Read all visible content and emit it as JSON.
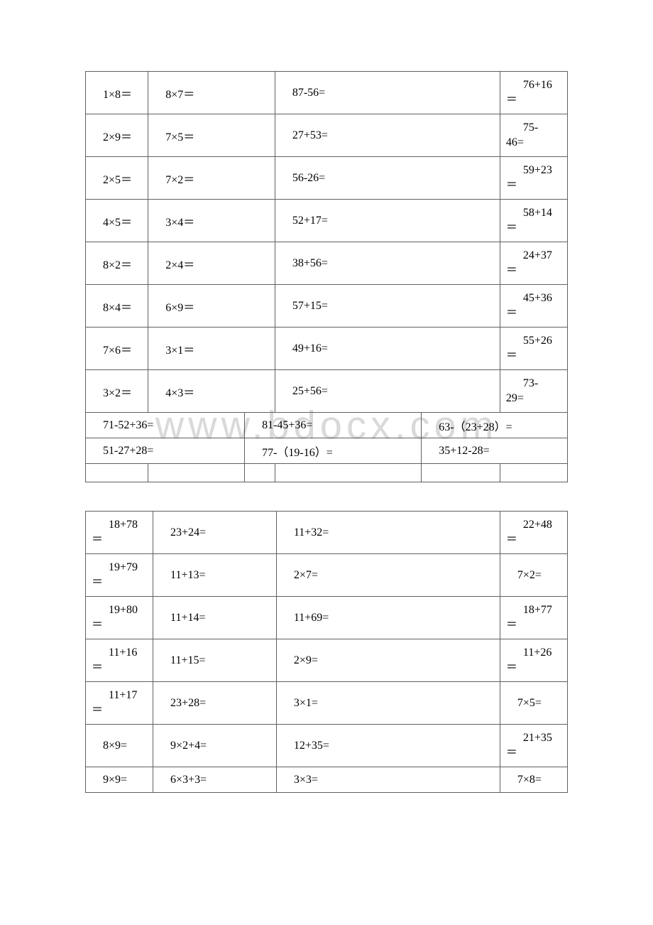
{
  "watermark": "www.bdocx.com",
  "table1": {
    "rows": [
      [
        {
          "text": "1×8＝",
          "wrap": false
        },
        {
          "text": "8×7＝",
          "wrap": false
        },
        {
          "text": "87-56=",
          "wrap": false
        },
        {
          "top": "76+16",
          "eq": "＝",
          "wrap": true
        }
      ],
      [
        {
          "text": "2×9＝",
          "wrap": false
        },
        {
          "text": "7×5＝",
          "wrap": false
        },
        {
          "text": "27+53=",
          "wrap": false
        },
        {
          "top": "75-",
          "eq": "46=",
          "wrap": true
        }
      ],
      [
        {
          "text": "2×5＝",
          "wrap": false
        },
        {
          "text": "7×2＝",
          "wrap": false
        },
        {
          "text": "56-26=",
          "wrap": false
        },
        {
          "top": "59+23",
          "eq": "＝",
          "wrap": true
        }
      ],
      [
        {
          "text": "4×5＝",
          "wrap": false
        },
        {
          "text": "3×4＝",
          "wrap": false
        },
        {
          "text": "52+17=",
          "wrap": false
        },
        {
          "top": "58+14",
          "eq": "＝",
          "wrap": true
        }
      ],
      [
        {
          "text": "8×2＝",
          "wrap": false
        },
        {
          "text": "2×4＝",
          "wrap": false
        },
        {
          "text": "38+56=",
          "wrap": false
        },
        {
          "top": "24+37",
          "eq": "＝",
          "wrap": true
        }
      ],
      [
        {
          "text": "8×4＝",
          "wrap": false
        },
        {
          "text": "6×9＝",
          "wrap": false
        },
        {
          "text": "57+15=",
          "wrap": false
        },
        {
          "top": "45+36",
          "eq": "＝",
          "wrap": true
        }
      ],
      [
        {
          "text": "7×6＝",
          "wrap": false
        },
        {
          "text": "3×1＝",
          "wrap": false
        },
        {
          "text": "49+16=",
          "wrap": false
        },
        {
          "top": "55+26",
          "eq": "＝",
          "wrap": true
        }
      ],
      [
        {
          "text": "3×2＝",
          "wrap": false
        },
        {
          "text": "4×3＝",
          "wrap": false
        },
        {
          "text": "25+56=",
          "wrap": false
        },
        {
          "top": "73-",
          "eq": "29=",
          "wrap": true
        }
      ]
    ],
    "wide": [
      [
        "71-52+36=",
        "81-45+36=",
        "63-（23+28）="
      ],
      [
        "51-27+28=",
        "77-（19-16）=",
        "35+12-28="
      ]
    ],
    "emptyCols": 6
  },
  "table2": {
    "rows": [
      [
        {
          "top": "18+78",
          "eq": "＝",
          "wrap": true
        },
        {
          "text": "23+24=",
          "wrap": false
        },
        {
          "text": "11+32=",
          "wrap": false
        },
        {
          "top": "22+48",
          "eq": "＝",
          "wrap": true
        }
      ],
      [
        {
          "top": "19+79",
          "eq": "＝",
          "wrap": true
        },
        {
          "text": "11+13=",
          "wrap": false
        },
        {
          "text": "2×7=",
          "wrap": false
        },
        {
          "text": "7×2=",
          "wrap": false
        }
      ],
      [
        {
          "top": "19+80",
          "eq": "＝",
          "wrap": true
        },
        {
          "text": "11+14=",
          "wrap": false
        },
        {
          "text": "11+69=",
          "wrap": false
        },
        {
          "top": "18+77",
          "eq": "＝",
          "wrap": true
        }
      ],
      [
        {
          "top": "11+16",
          "eq": "＝",
          "wrap": true
        },
        {
          "text": "11+15=",
          "wrap": false
        },
        {
          "text": "2×9=",
          "wrap": false
        },
        {
          "top": "11+26",
          "eq": "＝",
          "wrap": true
        }
      ],
      [
        {
          "top": "11+17",
          "eq": "＝",
          "wrap": true
        },
        {
          "text": "23+28=",
          "wrap": false
        },
        {
          "text": "3×1=",
          "wrap": false
        },
        {
          "text": "7×5=",
          "wrap": false
        }
      ],
      [
        {
          "text": "8×9=",
          "wrap": false
        },
        {
          "text": "9×2+4=",
          "wrap": false
        },
        {
          "text": "12+35=",
          "wrap": false
        },
        {
          "top": "21+35",
          "eq": "＝",
          "wrap": true
        }
      ],
      [
        {
          "text": "9×9=",
          "wrap": false
        },
        {
          "text": "6×3+3=",
          "wrap": false
        },
        {
          "text": "3×3=",
          "wrap": false
        },
        {
          "text": "7×8=",
          "wrap": false
        }
      ]
    ]
  },
  "colors": {
    "border": "#606060",
    "text": "#000000",
    "bg": "#ffffff",
    "watermark": "rgba(180,180,180,0.5)"
  }
}
